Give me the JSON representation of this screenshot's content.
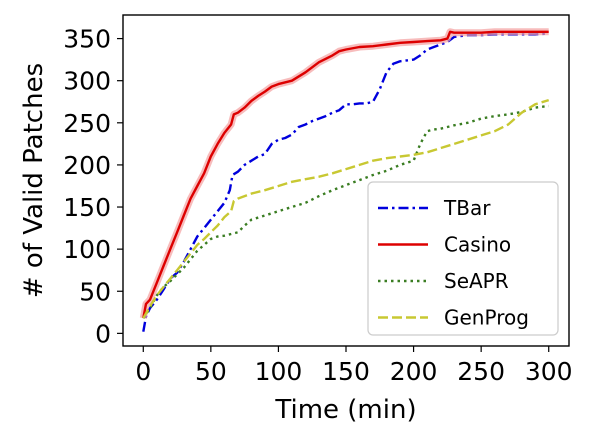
{
  "chart_data": {
    "type": "line",
    "xlabel": "Time (min)",
    "ylabel": "# of Valid Patches",
    "xlim": [
      -15,
      315
    ],
    "ylim": [
      -15,
      378
    ],
    "xticks": [
      0,
      50,
      100,
      150,
      200,
      250,
      300
    ],
    "yticks": [
      0,
      50,
      100,
      150,
      200,
      250,
      300,
      350
    ],
    "grid": false,
    "legend_position": "bottom-right",
    "series": [
      {
        "name": "TBar",
        "color": "#0000dd",
        "dash": "dashdot",
        "x": [
          0,
          2,
          5,
          10,
          15,
          20,
          25,
          30,
          35,
          40,
          45,
          50,
          55,
          60,
          64,
          66,
          70,
          75,
          80,
          85,
          90,
          95,
          100,
          105,
          110,
          115,
          120,
          125,
          130,
          135,
          140,
          145,
          150,
          155,
          160,
          165,
          170,
          175,
          180,
          185,
          190,
          200,
          205,
          210,
          215,
          220,
          225,
          230,
          240,
          250,
          260,
          270,
          280,
          290,
          300
        ],
        "y": [
          2,
          20,
          30,
          40,
          52,
          65,
          72,
          85,
          100,
          115,
          125,
          135,
          145,
          155,
          170,
          188,
          192,
          200,
          205,
          210,
          213,
          225,
          230,
          232,
          236,
          245,
          248,
          252,
          255,
          258,
          262,
          265,
          272,
          272,
          273,
          273,
          275,
          290,
          310,
          320,
          323,
          325,
          330,
          337,
          340,
          343,
          346,
          352,
          354,
          354,
          355,
          355,
          355,
          355,
          356
        ]
      },
      {
        "name": "Casino",
        "color": "#dd0000",
        "dash": "solid",
        "x": [
          0,
          2,
          5,
          10,
          15,
          20,
          25,
          30,
          35,
          40,
          45,
          50,
          55,
          60,
          65,
          67,
          70,
          75,
          80,
          85,
          90,
          95,
          100,
          110,
          120,
          130,
          140,
          145,
          150,
          160,
          170,
          180,
          190,
          200,
          210,
          220,
          225,
          227,
          230,
          240,
          250,
          260,
          270,
          280,
          290,
          300
        ],
        "y": [
          18,
          35,
          40,
          60,
          80,
          100,
          120,
          140,
          160,
          175,
          190,
          210,
          225,
          238,
          248,
          260,
          262,
          268,
          276,
          282,
          287,
          293,
          296,
          300,
          310,
          322,
          330,
          335,
          337,
          340,
          341,
          343,
          345,
          346,
          347,
          348,
          350,
          358,
          357,
          357,
          357,
          358,
          358,
          358,
          358,
          358
        ]
      },
      {
        "name": "SeAPR",
        "color": "#3a7d22",
        "dash": "dotted",
        "x": [
          0,
          5,
          10,
          15,
          20,
          25,
          30,
          35,
          40,
          45,
          50,
          55,
          60,
          65,
          70,
          75,
          80,
          90,
          100,
          110,
          120,
          130,
          140,
          150,
          160,
          170,
          180,
          190,
          200,
          205,
          210,
          215,
          220,
          225,
          230,
          240,
          250,
          260,
          270,
          280,
          290,
          300
        ],
        "y": [
          18,
          30,
          45,
          55,
          62,
          70,
          78,
          88,
          98,
          105,
          112,
          115,
          116,
          118,
          120,
          128,
          135,
          140,
          145,
          150,
          155,
          163,
          170,
          176,
          182,
          188,
          193,
          200,
          205,
          225,
          240,
          242,
          243,
          245,
          247,
          250,
          255,
          258,
          260,
          263,
          268,
          270
        ]
      },
      {
        "name": "GenProg",
        "color": "#c8c832",
        "dash": "dashed",
        "x": [
          0,
          5,
          10,
          15,
          20,
          25,
          30,
          35,
          40,
          45,
          50,
          55,
          60,
          65,
          67,
          70,
          75,
          80,
          90,
          100,
          110,
          120,
          130,
          140,
          150,
          160,
          170,
          180,
          190,
          200,
          210,
          220,
          230,
          240,
          250,
          260,
          270,
          280,
          290,
          300
        ],
        "y": [
          18,
          32,
          45,
          55,
          65,
          75,
          85,
          95,
          105,
          112,
          120,
          128,
          138,
          145,
          157,
          160,
          163,
          166,
          170,
          175,
          180,
          183,
          186,
          190,
          195,
          200,
          205,
          208,
          210,
          212,
          215,
          220,
          225,
          230,
          235,
          240,
          248,
          262,
          272,
          277
        ]
      }
    ]
  }
}
